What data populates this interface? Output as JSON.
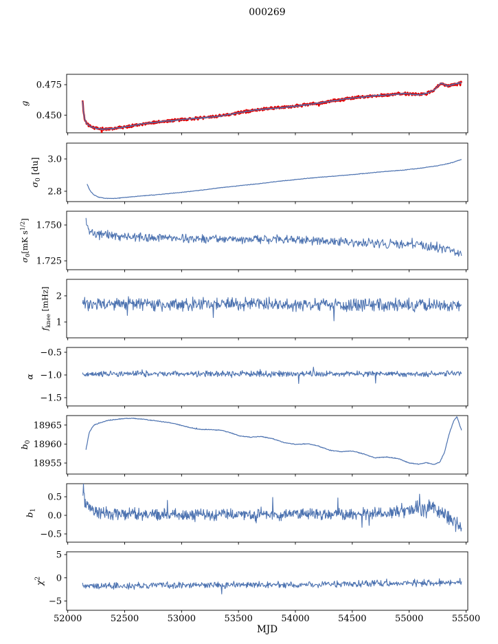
{
  "chart_data": {
    "type": "line",
    "title": "000269",
    "xlabel": "MJD",
    "xlim": [
      51990,
      55515
    ],
    "x_ticks": [
      52000,
      52500,
      53000,
      53500,
      54000,
      54500,
      55000,
      55500
    ],
    "x_tick_labels": [
      "52000",
      "52500",
      "53000",
      "53500",
      "54000",
      "54500",
      "55000",
      "55500"
    ],
    "colors": {
      "line": "#4c72b0",
      "overlay": "#e50000",
      "axis": "#000000"
    },
    "legend": "none",
    "grid": false,
    "panels": [
      {
        "name": "g",
        "ylabel": [
          {
            "t": "g",
            "i": true
          }
        ],
        "ylim": [
          0.4355,
          0.4835
        ],
        "ytick_values": [
          0.475,
          0.45
        ],
        "ytick_labels": [
          "0.475",
          "0.450"
        ],
        "series": [
          {
            "name": "g-red-band",
            "color": "#e50000",
            "lw": 2.6,
            "n": 950,
            "amp": 0.0013,
            "seed": 11,
            "x": [
              52130,
              52138,
              52150,
              52170,
              52210,
              52260,
              52320,
              52400,
              52480,
              52560,
              52650,
              52750,
              52850,
              52950,
              53050,
              53150,
              53250,
              53350,
              53450,
              53550,
              53650,
              53750,
              53850,
              53950,
              54050,
              54150,
              54250,
              54350,
              54450,
              54550,
              54650,
              54750,
              54850,
              54950,
              55030,
              55090,
              55150,
              55210,
              55280,
              55340,
              55400,
              55460
            ],
            "y": [
              0.462,
              0.453,
              0.4462,
              0.4428,
              0.4402,
              0.439,
              0.4385,
              0.439,
              0.44,
              0.4413,
              0.4427,
              0.444,
              0.445,
              0.4458,
              0.4468,
              0.4475,
              0.4483,
              0.4495,
              0.451,
              0.4528,
              0.4542,
              0.4552,
              0.456,
              0.4568,
              0.458,
              0.4592,
              0.4605,
              0.462,
              0.4635,
              0.4645,
              0.4655,
              0.4662,
              0.4668,
              0.4678,
              0.4672,
              0.4668,
              0.4678,
              0.47,
              0.4762,
              0.474,
              0.4756,
              0.4768
            ]
          },
          {
            "name": "g-line",
            "color": "#4c72b0",
            "lw": 1.3,
            "n": 950,
            "amp": 0.00055,
            "seed": 12,
            "x": [
              52130,
              52138,
              52150,
              52170,
              52210,
              52260,
              52320,
              52400,
              52480,
              52560,
              52650,
              52750,
              52850,
              52950,
              53050,
              53150,
              53250,
              53350,
              53450,
              53550,
              53650,
              53750,
              53850,
              53950,
              54050,
              54150,
              54250,
              54350,
              54450,
              54550,
              54650,
              54750,
              54850,
              54950,
              55030,
              55090,
              55150,
              55210,
              55280,
              55340,
              55400,
              55460
            ],
            "y": [
              0.462,
              0.453,
              0.4462,
              0.4428,
              0.4402,
              0.439,
              0.4385,
              0.439,
              0.44,
              0.4413,
              0.4427,
              0.444,
              0.445,
              0.4458,
              0.4468,
              0.4475,
              0.4483,
              0.4495,
              0.451,
              0.4528,
              0.4542,
              0.4552,
              0.456,
              0.4568,
              0.458,
              0.4592,
              0.4605,
              0.462,
              0.4635,
              0.4645,
              0.4655,
              0.4662,
              0.4668,
              0.4678,
              0.4672,
              0.4668,
              0.4678,
              0.47,
              0.4762,
              0.474,
              0.4756,
              0.4768
            ]
          }
        ]
      },
      {
        "name": "sigma0-du",
        "ylabel": [
          {
            "t": "σ",
            "i": true
          },
          {
            "t": "0",
            "sub": true
          },
          {
            "t": " [du]"
          }
        ],
        "ylim": [
          2.736,
          3.098
        ],
        "ytick_values": [
          3.0,
          2.8
        ],
        "ytick_labels": [
          "3.0",
          "2.8"
        ],
        "series": [
          {
            "name": "sigma0-du-line",
            "color": "#4c72b0",
            "lw": 1.2,
            "n": 750,
            "amp": 0.002,
            "seed": 22,
            "x": [
              52170,
              52195,
              52230,
              52270,
              52320,
              52380,
              52450,
              52550,
              52700,
              52850,
              53000,
              53150,
              53300,
              53450,
              53600,
              53750,
              53900,
              54050,
              54200,
              54350,
              54500,
              54650,
              54800,
              54950,
              55100,
              55250,
              55350,
              55430,
              55460
            ],
            "y": [
              2.845,
              2.805,
              2.778,
              2.764,
              2.757,
              2.755,
              2.758,
              2.765,
              2.774,
              2.783,
              2.793,
              2.805,
              2.818,
              2.83,
              2.841,
              2.853,
              2.865,
              2.876,
              2.886,
              2.894,
              2.903,
              2.913,
              2.923,
              2.931,
              2.943,
              2.958,
              2.972,
              2.99,
              2.998
            ]
          }
        ]
      },
      {
        "name": "sigma0-mks",
        "ylabel": [
          {
            "t": "σ",
            "i": true
          },
          {
            "t": "0",
            "sub": true
          },
          {
            "t": "[mK s"
          },
          {
            "t": "1/2",
            "sup": true
          },
          {
            "t": "]"
          }
        ],
        "ylim": [
          1.7188,
          1.7596
        ],
        "ytick_values": [
          1.75,
          1.725
        ],
        "ytick_labels": [
          "1.750",
          "1.725"
        ],
        "series": [
          {
            "name": "sigma0-mks-line",
            "color": "#4c72b0",
            "lw": 1.1,
            "n": 640,
            "amp": 0.0038,
            "seed": 33,
            "x": [
              52160,
              52180,
              52210,
              52260,
              52350,
              52500,
              52700,
              53000,
              53300,
              53600,
              53900,
              54200,
              54500,
              54800,
              55050,
              55250,
              55400,
              55460
            ],
            "y": [
              1.7538,
              1.747,
              1.7442,
              1.743,
              1.7428,
              1.742,
              1.7412,
              1.7405,
              1.7403,
              1.74,
              1.7398,
              1.739,
              1.738,
              1.7368,
              1.736,
              1.7345,
              1.731,
              1.7302
            ]
          }
        ]
      },
      {
        "name": "fknee",
        "ylabel": [
          {
            "t": "f",
            "i": true
          },
          {
            "t": "knee",
            "sub": true
          },
          {
            "t": " [mHz]"
          }
        ],
        "ylim": [
          0.395,
          2.63
        ],
        "ytick_values": [
          2,
          1
        ],
        "ytick_labels": [
          "2",
          "1"
        ],
        "series": [
          {
            "name": "fknee-line",
            "color": "#4c72b0",
            "lw": 1.1,
            "n": 720,
            "amp": 0.3,
            "seed": 44,
            "spike": 2.9,
            "x": [
              52130,
              53800,
              55460
            ],
            "y": [
              1.7,
              1.67,
              1.64
            ]
          }
        ]
      },
      {
        "name": "alpha",
        "ylabel": [
          {
            "t": "α",
            "i": true
          }
        ],
        "ylim": [
          -1.682,
          -0.394
        ],
        "ytick_values": [
          -0.5,
          -1.0,
          -1.5
        ],
        "ytick_labels": [
          "−0.5",
          "−1.0",
          "−1.5"
        ],
        "series": [
          {
            "name": "alpha-line",
            "color": "#4c72b0",
            "lw": 1.1,
            "n": 720,
            "amp": 0.075,
            "seed": 55,
            "spike": 4.2,
            "x": [
              52130,
              55460
            ],
            "y": [
              -0.972,
              -0.978
            ]
          }
        ]
      },
      {
        "name": "b0",
        "ylabel": [
          {
            "t": "b",
            "i": true
          },
          {
            "t": "0",
            "sub": true
          }
        ],
        "ylim": [
          18952.1,
          18967.5
        ],
        "ytick_values": [
          18965,
          18960,
          18955
        ],
        "ytick_labels": [
          "18965",
          "18960",
          "18955"
        ],
        "series": [
          {
            "name": "b0-line",
            "color": "#4c72b0",
            "lw": 1.2,
            "n": 800,
            "amp": 0.12,
            "seed": 66,
            "x": [
              52160,
              52190,
              52230,
              52280,
              52350,
              52450,
              52550,
              52650,
              52750,
              52850,
              52950,
              53050,
              53150,
              53250,
              53350,
              53430,
              53500,
              53600,
              53700,
              53800,
              53900,
              54000,
              54100,
              54200,
              54300,
              54400,
              54500,
              54600,
              54700,
              54800,
              54900,
              55000,
              55080,
              55150,
              55220,
              55270,
              55310,
              55350,
              55390,
              55420,
              55460
            ],
            "y": [
              18958.6,
              18963.2,
              18965.0,
              18965.6,
              18966.2,
              18966.6,
              18966.8,
              18966.6,
              18966.2,
              18965.8,
              18965.3,
              18964.5,
              18963.9,
              18963.8,
              18963.6,
              18963.0,
              18962.2,
              18961.8,
              18962.0,
              18961.4,
              18960.4,
              18959.9,
              18960.1,
              18959.5,
              18958.4,
              18958.0,
              18958.2,
              18957.4,
              18956.4,
              18956.6,
              18956.2,
              18955.0,
              18954.7,
              18955.1,
              18954.6,
              18955.3,
              18957.8,
              18962.5,
              18966.0,
              18967.2,
              18963.6
            ]
          }
        ]
      },
      {
        "name": "b1",
        "ylabel": [
          {
            "t": "b",
            "i": true
          },
          {
            "t": "1",
            "sub": true
          }
        ],
        "ylim": [
          -0.722,
          0.852
        ],
        "ytick_values": [
          0.5,
          0.0,
          -0.5
        ],
        "ytick_labels": [
          "0.5",
          "0.0",
          "−0.5"
        ],
        "series": [
          {
            "name": "b1-line",
            "color": "#4c72b0",
            "lw": 1.1,
            "n": 850,
            "amp": 0.2,
            "seed": 77,
            "spike": 2.6,
            "x": [
              52130,
              52150,
              52190,
              52260,
              52400,
              53000,
              53800,
              54500,
              54850,
              55000,
              55120,
              55220,
              55320,
              55400,
              55460
            ],
            "y": [
              0.72,
              0.48,
              0.22,
              0.08,
              0.03,
              0.01,
              0.02,
              0.03,
              0.08,
              0.14,
              0.2,
              0.16,
              0.05,
              -0.18,
              -0.32
            ],
            "ax": [
              52130,
              52250,
              52600,
              54600,
              54900,
              55050,
              55200,
              55320,
              55420,
              55460
            ],
            "ay": [
              0.34,
              0.22,
              0.19,
              0.19,
              0.22,
              0.28,
              0.34,
              0.28,
              0.24,
              0.17
            ]
          }
        ]
      },
      {
        "name": "chi2",
        "ylabel": [
          {
            "t": "χ",
            "i": true
          },
          {
            "t": "2",
            "sup": true
          }
        ],
        "ylim": [
          -7.0,
          5.6
        ],
        "ytick_values": [
          5,
          0,
          -5
        ],
        "ytick_labels": [
          "5",
          "0",
          "−5"
        ],
        "series": [
          {
            "name": "chi2-line",
            "color": "#4c72b0",
            "lw": 1.1,
            "n": 720,
            "amp": 0.9,
            "seed": 88,
            "spike": 2.6,
            "x": [
              52130,
              52350,
              52700,
              53200,
              54000,
              54600,
              55000,
              55300,
              55460
            ],
            "y": [
              -1.55,
              -1.85,
              -1.6,
              -1.55,
              -1.45,
              -1.3,
              -1.15,
              -1.05,
              -0.85
            ]
          }
        ]
      }
    ]
  }
}
